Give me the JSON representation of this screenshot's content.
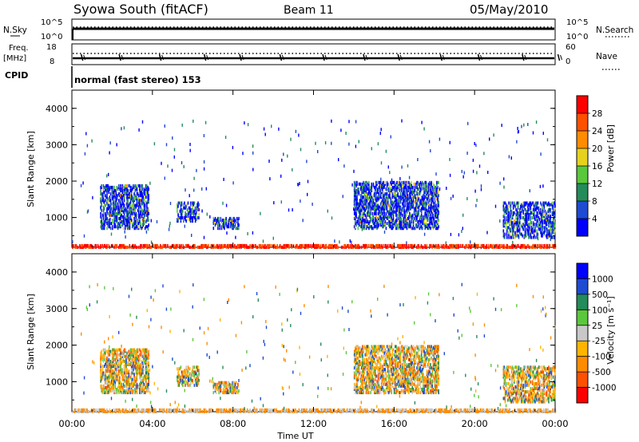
{
  "header": {
    "title": "Syowa South (fitACF)",
    "beam": "Beam 11",
    "date": "05/May/2010"
  },
  "top_panel": {
    "left_label": "N.Sky",
    "left_ticks": [
      "10^5",
      "10^0"
    ],
    "right_label": "N.Search",
    "right_ticks": [
      "10^5",
      "10^0"
    ]
  },
  "freq_panel": {
    "left_label_1": "Freq.",
    "left_label_2": "[MHz]",
    "left_ticks": [
      "18",
      "8"
    ],
    "right_label": "Nave",
    "right_ticks": [
      "60",
      "0"
    ],
    "cpid_label": "CPID",
    "mode_text": "normal (fast stereo) 153"
  },
  "colors": {
    "power_scale": [
      "#0000ff",
      "#1e4bd2",
      "#238c5a",
      "#5ac83c",
      "#e6d21e",
      "#ff8c00",
      "#ff5000",
      "#ff0000"
    ],
    "velocity_scale": [
      "#ff0000",
      "#ff5000",
      "#ff8c00",
      "#ffb400",
      "#c8c8c8",
      "#5ac83c",
      "#238c5a",
      "#1e4bd2",
      "#0000ff"
    ]
  },
  "chart_data": [
    {
      "type": "heatmap",
      "panel": "power",
      "ylabel": "Slant Range [km]",
      "yticks": [
        "1000",
        "2000",
        "3000",
        "4000"
      ],
      "ylim": [
        180,
        4500
      ],
      "xlim": [
        0,
        24
      ],
      "colorbar_label": "Power [dB]",
      "colorbar_ticks": [
        "4",
        "8",
        "12",
        "16",
        "20",
        "24",
        "28"
      ],
      "scatter_regions": [
        {
          "t0": 1.4,
          "t1": 3.8,
          "r0": 700,
          "r1": 1900,
          "density": 0.45
        },
        {
          "t0": 5.2,
          "t1": 6.3,
          "r0": 900,
          "r1": 1400,
          "density": 0.35
        },
        {
          "t0": 7.0,
          "t1": 8.3,
          "r0": 700,
          "r1": 1000,
          "density": 0.5
        },
        {
          "t0": 14.0,
          "t1": 18.2,
          "r0": 700,
          "r1": 2000,
          "density": 0.45
        },
        {
          "t0": 21.4,
          "t1": 24.0,
          "r0": 450,
          "r1": 1400,
          "density": 0.4
        },
        {
          "t0": 0.0,
          "t1": 24.0,
          "r0": 180,
          "r1": 260,
          "density": 0.6
        }
      ]
    },
    {
      "type": "heatmap",
      "panel": "velocity",
      "ylabel": "Slant Range [km]",
      "yticks": [
        "1000",
        "2000",
        "3000",
        "4000"
      ],
      "ylim": [
        180,
        4500
      ],
      "xlim": [
        0,
        24
      ],
      "xlabel": "Time UT",
      "xticks": [
        "00:00",
        "04:00",
        "08:00",
        "12:00",
        "16:00",
        "20:00",
        "00:00"
      ],
      "colorbar_label": "Velocity [m s⁻¹]",
      "colorbar_ticks": [
        "-1000",
        "-500",
        "-100",
        "-25",
        "25",
        "100",
        "500",
        "1000"
      ],
      "scatter_regions": [
        {
          "t0": 1.4,
          "t1": 3.8,
          "r0": 700,
          "r1": 1900,
          "density": 0.45
        },
        {
          "t0": 5.2,
          "t1": 6.3,
          "r0": 900,
          "r1": 1400,
          "density": 0.35
        },
        {
          "t0": 7.0,
          "t1": 8.3,
          "r0": 700,
          "r1": 1000,
          "density": 0.5
        },
        {
          "t0": 14.0,
          "t1": 18.2,
          "r0": 700,
          "r1": 2000,
          "density": 0.45
        },
        {
          "t0": 21.4,
          "t1": 24.0,
          "r0": 450,
          "r1": 1400,
          "density": 0.4
        },
        {
          "t0": 0.0,
          "t1": 24.0,
          "r0": 180,
          "r1": 260,
          "density": 0.6
        }
      ]
    }
  ]
}
